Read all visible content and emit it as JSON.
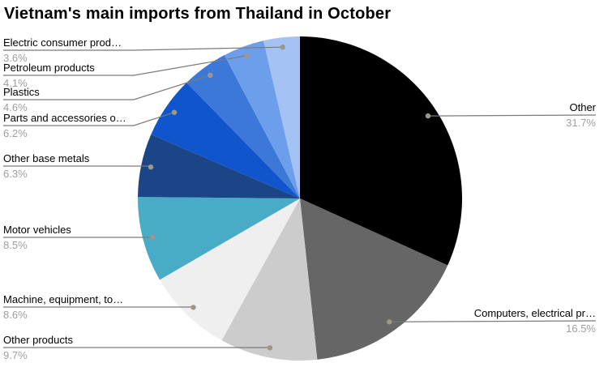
{
  "title": "Vietnam's main imports from Thailand in October",
  "chart_data": {
    "type": "pie",
    "title": "Vietnam's main imports from Thailand in October",
    "legend_position": "labeled",
    "start_angle_deg": 0,
    "direction": "clockwise",
    "unit": "%",
    "slices": [
      {
        "label": "Other",
        "pct_text": "31.7%",
        "value": 31.7,
        "color": "#000000"
      },
      {
        "label": "Computers, electrical pr…",
        "pct_text": "16.5%",
        "value": 16.5,
        "color": "#666666"
      },
      {
        "label": "Other products",
        "pct_text": "9.7%",
        "value": 9.7,
        "color": "#cccccc"
      },
      {
        "label": "Machine, equipment, to…",
        "pct_text": "8.6%",
        "value": 8.6,
        "color": "#efefef"
      },
      {
        "label": "Motor vehicles",
        "pct_text": "8.5%",
        "value": 8.5,
        "color": "#49acc7"
      },
      {
        "label": "Other base metals",
        "pct_text": "6.3%",
        "value": 6.3,
        "color": "#1c4587"
      },
      {
        "label": "Parts and accessories o…",
        "pct_text": "6.2%",
        "value": 6.2,
        "color": "#1155cc"
      },
      {
        "label": "Plastics",
        "pct_text": "4.6%",
        "value": 4.6,
        "color": "#3c78d8"
      },
      {
        "label": "Petroleum products",
        "pct_text": "4.1%",
        "value": 4.1,
        "color": "#6d9eeb"
      },
      {
        "label": "Electric consumer prod…",
        "pct_text": "3.6%",
        "value": 3.6,
        "color": "#a4c2f4"
      }
    ]
  },
  "colors": {
    "background": "#ffffff",
    "title_text": "#000000",
    "label_text": "#000000",
    "percent_text": "#9e9e9e",
    "leader_line": "#7a7a7a",
    "leader_dot": "#9c968c"
  }
}
